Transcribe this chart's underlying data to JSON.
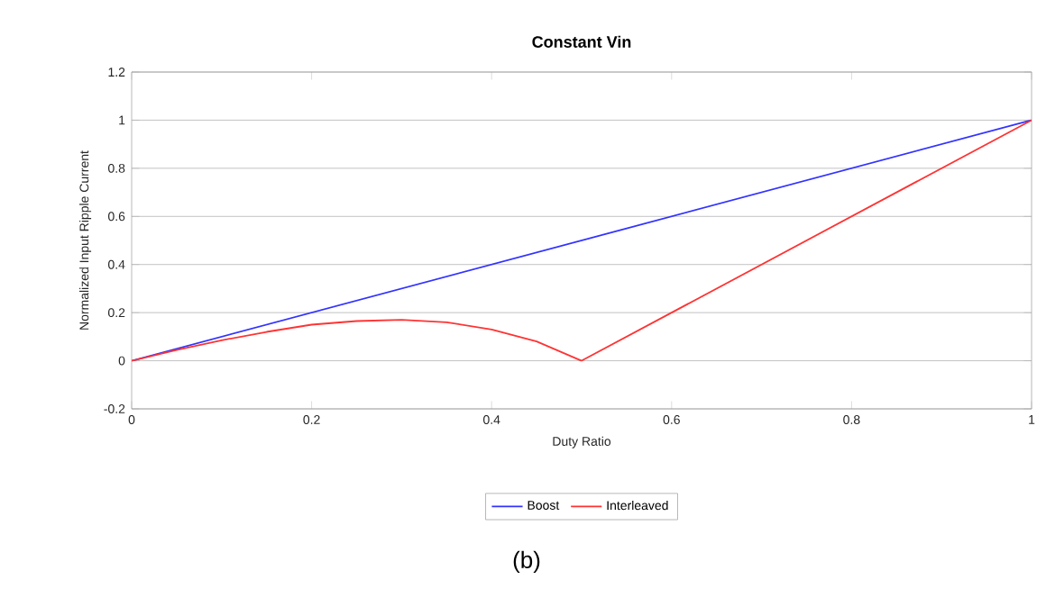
{
  "chart_data": {
    "type": "line",
    "title": "Constant Vin",
    "xlabel": "Duty Ratio",
    "ylabel": "Normalized Input Ripple Current",
    "xlim": [
      0,
      1
    ],
    "ylim": [
      -0.2,
      1.2
    ],
    "xticks": [
      0,
      0.2,
      0.4,
      0.6,
      0.8,
      1
    ],
    "yticks": [
      -0.2,
      0,
      0.2,
      0.4,
      0.6,
      0.8,
      1,
      1.2
    ],
    "grid": "y",
    "legend": "bottom",
    "marker": "none",
    "line_style": "solid",
    "series": [
      {
        "name": "Boost",
        "color": "#3333ff",
        "x": [
          0,
          1
        ],
        "values": [
          0,
          1
        ]
      },
      {
        "name": "Interleaved",
        "color": "#ff3333",
        "x": [
          0,
          0.05,
          0.1,
          0.15,
          0.2,
          0.25,
          0.3,
          0.35,
          0.4,
          0.45,
          0.5,
          1
        ],
        "values": [
          0,
          0.045,
          0.085,
          0.12,
          0.15,
          0.165,
          0.17,
          0.16,
          0.13,
          0.08,
          0,
          1
        ]
      }
    ],
    "annotations": [
      "(b)"
    ]
  }
}
